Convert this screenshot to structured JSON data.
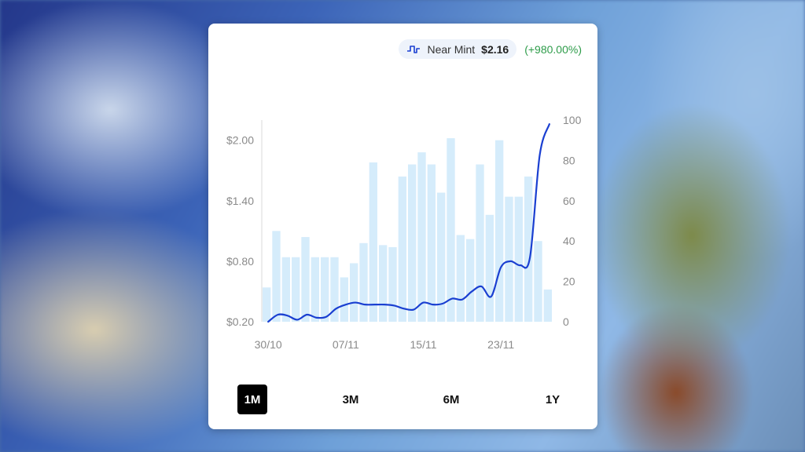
{
  "price_header": {
    "condition": "Near Mint",
    "price": "$2.16",
    "change": "(+980.00%)",
    "icon": "price-line-icon"
  },
  "colors": {
    "line": "#1a3fd1",
    "bar": "#d5ecfb",
    "axis_text": "#8a8a8a",
    "change_positive": "#2e9c4a",
    "active_range_bg": "#000000"
  },
  "range_buttons": [
    {
      "label": "1M",
      "active": true
    },
    {
      "label": "3M",
      "active": false
    },
    {
      "label": "6M",
      "active": false
    },
    {
      "label": "1Y",
      "active": false
    }
  ],
  "chart_data": {
    "type": "bar",
    "title": "",
    "xlabel": "",
    "ylabel": "",
    "grid": false,
    "x_ticks": [
      "30/10",
      "07/11",
      "15/11",
      "23/11"
    ],
    "y_left": {
      "ticks": [
        "$0.20",
        "$0.80",
        "$1.40",
        "$2.00"
      ],
      "ylim": [
        0.2,
        2.2
      ]
    },
    "y_right": {
      "ticks": [
        "0",
        "20",
        "40",
        "60",
        "80",
        "100"
      ],
      "ylim": [
        0,
        100
      ]
    },
    "bars": {
      "axis": "right",
      "values": [
        17,
        45,
        32,
        32,
        42,
        32,
        32,
        32,
        22,
        29,
        39,
        79,
        38,
        37,
        72,
        78,
        84,
        78,
        64,
        91,
        43,
        41,
        78,
        53,
        90,
        62,
        62,
        72,
        40,
        16
      ]
    },
    "line": {
      "axis": "left",
      "values": [
        0.2,
        0.27,
        0.26,
        0.22,
        0.27,
        0.24,
        0.25,
        0.33,
        0.37,
        0.39,
        0.37,
        0.37,
        0.37,
        0.36,
        0.33,
        0.32,
        0.39,
        0.37,
        0.38,
        0.43,
        0.42,
        0.5,
        0.55,
        0.45,
        0.74,
        0.8,
        0.76,
        0.84,
        1.85,
        2.16
      ]
    }
  }
}
